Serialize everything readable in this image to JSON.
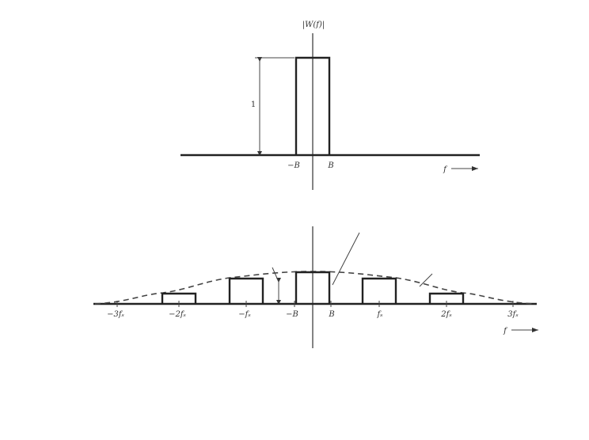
{
  "top": {
    "ylabel": "|W(f)|",
    "height_label": "1",
    "tick_labels": [
      "−B",
      "B"
    ],
    "x_axis_label": "f"
  },
  "bottom": {
    "tick_labels": [
      "−3fₛ",
      "−2fₛ",
      "−fₛ",
      "−B",
      "B",
      "fₛ",
      "2fₛ",
      "3fₛ"
    ],
    "x_axis_label": "f"
  }
}
